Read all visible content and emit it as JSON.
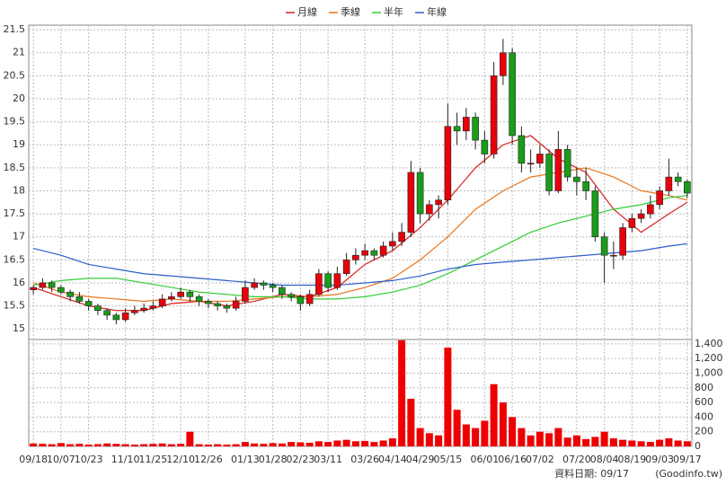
{
  "chart_data": {
    "type": "candlestick",
    "legend": "top",
    "grid": true,
    "up_color": "#e8000b",
    "down_color": "#1a9c1a",
    "volume_color": "#ee0000",
    "footer": {
      "date_label": "資料日期: 09/17",
      "source": "(Goodinfo.tw)"
    },
    "xlim": [
      -0.5,
      71.5
    ],
    "xticks": [
      {
        "value": 0,
        "label": "09/18"
      },
      {
        "value": 3,
        "label": "10/07"
      },
      {
        "value": 6,
        "label": "10/23"
      },
      {
        "value": 10,
        "label": "11/10"
      },
      {
        "value": 13,
        "label": "11/25"
      },
      {
        "value": 16,
        "label": "12/10"
      },
      {
        "value": 19,
        "label": "12/26"
      },
      {
        "value": 23,
        "label": "01/13"
      },
      {
        "value": 26,
        "label": "01/28"
      },
      {
        "value": 29,
        "label": "02/23"
      },
      {
        "value": 32,
        "label": "03/11"
      },
      {
        "value": 36,
        "label": "03/26"
      },
      {
        "value": 39,
        "label": "04/14"
      },
      {
        "value": 42,
        "label": "04/29"
      },
      {
        "value": 45,
        "label": "05/15"
      },
      {
        "value": 49,
        "label": "06/01"
      },
      {
        "value": 52,
        "label": "06/16"
      },
      {
        "value": 55,
        "label": "07/02"
      },
      {
        "value": 59,
        "label": "07/20"
      },
      {
        "value": 62,
        "label": "08/04"
      },
      {
        "value": 65,
        "label": "08/19"
      },
      {
        "value": 68,
        "label": "09/03"
      },
      {
        "value": 71,
        "label": "09/17"
      }
    ],
    "ylim": [
      14.77,
      21.6
    ],
    "yticks": [
      15,
      15.5,
      16,
      16.5,
      17,
      17.5,
      18,
      18.5,
      19,
      19.5,
      20,
      20.5,
      21,
      21.5
    ],
    "y2lim": [
      0,
      1460
    ],
    "y2ticks": [
      0,
      200,
      400,
      600,
      800,
      {
        "value": 1000,
        "label": "1,000"
      },
      {
        "value": 1200,
        "label": "1,200"
      },
      {
        "value": 1400,
        "label": "1,400"
      }
    ],
    "x": [
      0,
      1,
      2,
      3,
      4,
      5,
      6,
      7,
      8,
      9,
      10,
      11,
      12,
      13,
      14,
      15,
      16,
      17,
      18,
      19,
      20,
      21,
      22,
      23,
      24,
      25,
      26,
      27,
      28,
      29,
      30,
      31,
      32,
      33,
      34,
      35,
      36,
      37,
      38,
      39,
      40,
      41,
      42,
      43,
      44,
      45,
      46,
      47,
      48,
      49,
      50,
      51,
      52,
      53,
      54,
      55,
      56,
      57,
      58,
      59,
      60,
      61,
      62,
      63,
      64,
      65,
      66,
      67,
      68,
      69,
      70,
      71
    ],
    "candles": [
      [
        15.85,
        15.95,
        15.75,
        15.9
      ],
      [
        15.9,
        16.1,
        15.85,
        16.0
      ],
      [
        16.0,
        16.05,
        15.8,
        15.9
      ],
      [
        15.9,
        15.95,
        15.75,
        15.8
      ],
      [
        15.8,
        15.85,
        15.6,
        15.7
      ],
      [
        15.7,
        15.8,
        15.55,
        15.6
      ],
      [
        15.6,
        15.65,
        15.4,
        15.5
      ],
      [
        15.5,
        15.55,
        15.3,
        15.4
      ],
      [
        15.4,
        15.45,
        15.2,
        15.3
      ],
      [
        15.3,
        15.35,
        15.1,
        15.2
      ],
      [
        15.2,
        15.45,
        15.15,
        15.35
      ],
      [
        15.35,
        15.5,
        15.3,
        15.4
      ],
      [
        15.4,
        15.55,
        15.35,
        15.45
      ],
      [
        15.45,
        15.6,
        15.4,
        15.5
      ],
      [
        15.5,
        15.75,
        15.45,
        15.65
      ],
      [
        15.65,
        15.8,
        15.6,
        15.7
      ],
      [
        15.7,
        15.9,
        15.65,
        15.8
      ],
      [
        15.8,
        15.85,
        15.6,
        15.7
      ],
      [
        15.7,
        15.75,
        15.5,
        15.6
      ],
      [
        15.6,
        15.65,
        15.45,
        15.55
      ],
      [
        15.55,
        15.6,
        15.4,
        15.5
      ],
      [
        15.5,
        15.55,
        15.35,
        15.45
      ],
      [
        15.45,
        15.7,
        15.4,
        15.6
      ],
      [
        15.6,
        16.05,
        15.55,
        15.9
      ],
      [
        15.9,
        16.1,
        15.85,
        16.0
      ],
      [
        16.0,
        16.05,
        15.85,
        15.95
      ],
      [
        15.95,
        16.0,
        15.8,
        15.9
      ],
      [
        15.9,
        15.95,
        15.65,
        15.75
      ],
      [
        15.75,
        15.8,
        15.6,
        15.7
      ],
      [
        15.7,
        15.75,
        15.4,
        15.55
      ],
      [
        15.55,
        15.85,
        15.5,
        15.75
      ],
      [
        15.75,
        16.3,
        15.7,
        16.2
      ],
      [
        16.2,
        16.25,
        15.8,
        15.9
      ],
      [
        15.9,
        16.35,
        15.85,
        16.2
      ],
      [
        16.2,
        16.65,
        16.15,
        16.5
      ],
      [
        16.5,
        16.75,
        16.4,
        16.6
      ],
      [
        16.6,
        16.85,
        16.5,
        16.7
      ],
      [
        16.7,
        16.75,
        16.5,
        16.6
      ],
      [
        16.6,
        16.9,
        16.55,
        16.8
      ],
      [
        16.8,
        17.1,
        16.7,
        16.9
      ],
      [
        16.9,
        17.3,
        16.8,
        17.1
      ],
      [
        17.1,
        18.65,
        17.0,
        18.4
      ],
      [
        18.4,
        18.5,
        17.3,
        17.5
      ],
      [
        17.5,
        17.8,
        17.35,
        17.7
      ],
      [
        17.7,
        17.9,
        17.4,
        17.8
      ],
      [
        17.8,
        19.9,
        17.7,
        19.4
      ],
      [
        19.4,
        19.7,
        19.0,
        19.3
      ],
      [
        19.3,
        19.8,
        19.1,
        19.6
      ],
      [
        19.6,
        19.7,
        18.9,
        19.1
      ],
      [
        19.1,
        19.3,
        18.6,
        18.8
      ],
      [
        18.8,
        20.8,
        18.7,
        20.5
      ],
      [
        20.5,
        21.3,
        20.3,
        21.0
      ],
      [
        21.0,
        21.1,
        19.0,
        19.2
      ],
      [
        19.2,
        19.4,
        18.4,
        18.6
      ],
      [
        18.6,
        18.9,
        18.4,
        18.6
      ],
      [
        18.6,
        19.0,
        18.5,
        18.8
      ],
      [
        18.8,
        18.9,
        17.9,
        18.0
      ],
      [
        18.0,
        19.3,
        17.95,
        18.9
      ],
      [
        18.9,
        19.0,
        18.2,
        18.3
      ],
      [
        18.3,
        18.5,
        17.9,
        18.2
      ],
      [
        18.2,
        18.5,
        17.8,
        18.0
      ],
      [
        18.0,
        18.1,
        16.9,
        17.0
      ],
      [
        17.0,
        17.1,
        16.0,
        16.6
      ],
      [
        16.6,
        16.9,
        16.3,
        16.6
      ],
      [
        16.6,
        17.3,
        16.5,
        17.2
      ],
      [
        17.2,
        17.5,
        17.1,
        17.4
      ],
      [
        17.4,
        17.6,
        17.3,
        17.5
      ],
      [
        17.5,
        17.9,
        17.4,
        17.7
      ],
      [
        17.7,
        18.1,
        17.6,
        18.0
      ],
      [
        18.0,
        18.7,
        17.9,
        18.3
      ],
      [
        18.3,
        18.4,
        18.1,
        18.2
      ],
      [
        18.2,
        18.25,
        17.85,
        17.95
      ]
    ],
    "volume": [
      40,
      35,
      30,
      45,
      30,
      35,
      25,
      30,
      40,
      35,
      30,
      25,
      30,
      35,
      40,
      30,
      35,
      200,
      30,
      25,
      30,
      25,
      30,
      60,
      40,
      35,
      45,
      40,
      60,
      55,
      50,
      70,
      60,
      80,
      90,
      70,
      75,
      60,
      80,
      110,
      1450,
      650,
      250,
      180,
      150,
      1350,
      500,
      300,
      250,
      350,
      850,
      600,
      400,
      250,
      150,
      200,
      180,
      250,
      120,
      150,
      100,
      130,
      200,
      110,
      90,
      80,
      70,
      60,
      90,
      110,
      80,
      70
    ],
    "series": [
      {
        "name": "月線",
        "color": "#d62020",
        "x": [
          0,
          3,
          6,
          9,
          12,
          15,
          18,
          21,
          24,
          27,
          30,
          33,
          36,
          39,
          42,
          45,
          48,
          51,
          54,
          57,
          60,
          63,
          66,
          69,
          71
        ],
        "values": [
          15.9,
          15.7,
          15.5,
          15.4,
          15.4,
          15.55,
          15.6,
          15.5,
          15.6,
          15.75,
          15.7,
          15.9,
          16.4,
          16.7,
          17.2,
          17.8,
          18.5,
          19.0,
          19.2,
          18.7,
          18.4,
          17.6,
          17.1,
          17.5,
          17.75
        ]
      },
      {
        "name": "季線",
        "color": "#e8761c",
        "x": [
          0,
          3,
          6,
          9,
          12,
          15,
          18,
          21,
          24,
          27,
          30,
          33,
          36,
          39,
          42,
          45,
          48,
          51,
          54,
          57,
          60,
          63,
          66,
          69,
          71
        ],
        "values": [
          16.0,
          15.8,
          15.7,
          15.65,
          15.6,
          15.65,
          15.6,
          15.6,
          15.65,
          15.7,
          15.7,
          15.75,
          15.9,
          16.1,
          16.5,
          17.0,
          17.6,
          18.0,
          18.3,
          18.4,
          18.5,
          18.3,
          18.0,
          17.9,
          17.8
        ]
      },
      {
        "name": "半年",
        "color": "#33cc33",
        "x": [
          0,
          3,
          6,
          9,
          12,
          15,
          18,
          21,
          24,
          27,
          30,
          33,
          36,
          39,
          42,
          45,
          48,
          51,
          54,
          57,
          60,
          63,
          66,
          69,
          71
        ],
        "values": [
          15.95,
          16.05,
          16.1,
          16.1,
          16.0,
          15.9,
          15.8,
          15.75,
          15.7,
          15.7,
          15.65,
          15.65,
          15.7,
          15.8,
          15.95,
          16.2,
          16.5,
          16.8,
          17.1,
          17.3,
          17.45,
          17.6,
          17.7,
          17.85,
          17.9
        ]
      },
      {
        "name": "年線",
        "color": "#2b5fc9",
        "x": [
          0,
          3,
          6,
          9,
          12,
          15,
          18,
          21,
          24,
          27,
          30,
          33,
          36,
          39,
          42,
          45,
          48,
          51,
          54,
          57,
          60,
          63,
          66,
          69,
          71
        ],
        "values": [
          16.75,
          16.6,
          16.4,
          16.3,
          16.2,
          16.15,
          16.1,
          16.05,
          16.0,
          15.95,
          15.95,
          15.95,
          16.0,
          16.05,
          16.15,
          16.3,
          16.4,
          16.45,
          16.5,
          16.55,
          16.6,
          16.65,
          16.7,
          16.8,
          16.85
        ]
      }
    ]
  }
}
